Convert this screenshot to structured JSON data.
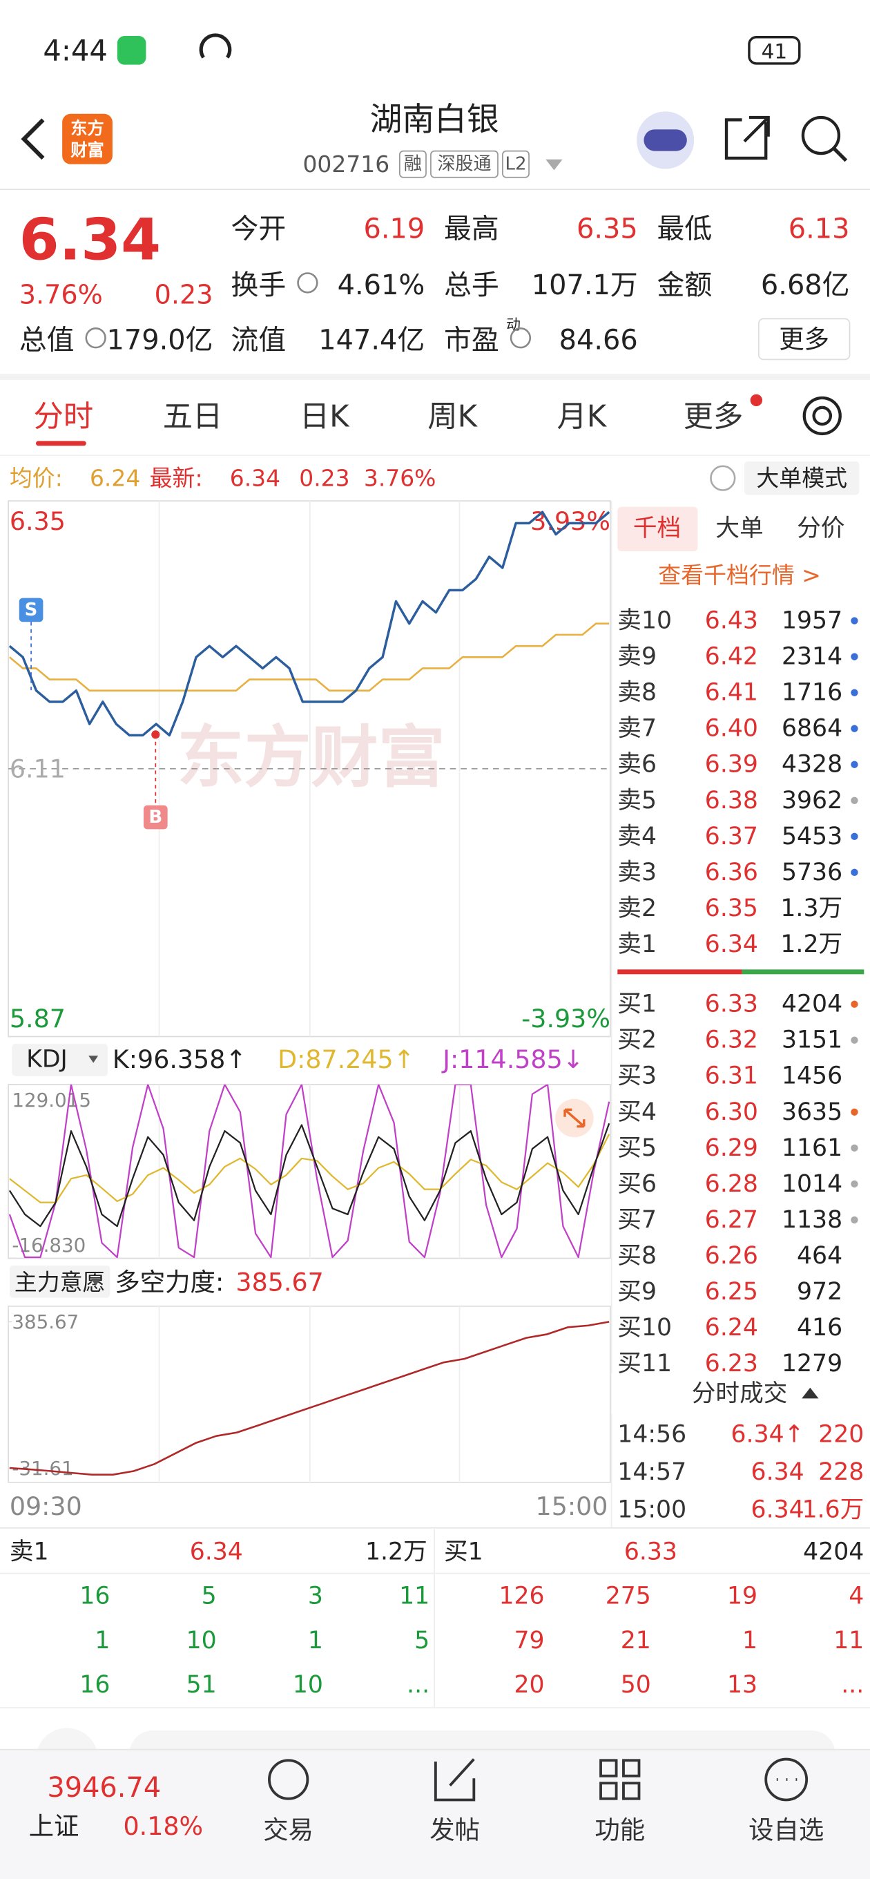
{
  "status": {
    "time": "4:44",
    "battery": "41"
  },
  "header": {
    "logo": [
      "东方",
      "财富"
    ],
    "title": "湖南白银",
    "code": "002716",
    "tags": [
      "融",
      "深股通",
      "L2"
    ]
  },
  "quote": {
    "price": "6.34",
    "pct": "3.76%",
    "change": "0.23",
    "more": "更多",
    "fields": [
      {
        "label": "今开",
        "value": "6.19"
      },
      {
        "label": "最高",
        "value": "6.35"
      },
      {
        "label": "最低",
        "value": "6.13"
      },
      {
        "label": "换手",
        "value": "4.61%"
      },
      {
        "label": "总手",
        "value": "107.1万"
      },
      {
        "label": "金额",
        "value": "6.68亿"
      },
      {
        "label": "总值",
        "value": "179.0亿"
      },
      {
        "label": "流值",
        "value": "147.4亿"
      },
      {
        "label": "市盈",
        "sup": "动",
        "value": "84.66"
      }
    ]
  },
  "tabs": [
    "分时",
    "五日",
    "日K",
    "周K",
    "月K",
    "更多"
  ],
  "info_bar": {
    "avg_label": "均价:",
    "avg": "6.24",
    "latest_label": "最新:",
    "latest": "6.34",
    "change": "0.23",
    "pct": "3.76%",
    "mode": "大单模式"
  },
  "order_book": {
    "tabs": [
      "千档",
      "大单",
      "分价"
    ],
    "link": "查看千档行情 >",
    "asks": [
      {
        "label": "卖10",
        "price": "6.43",
        "volume": "1957",
        "dot": "#3a6fd8"
      },
      {
        "label": "卖9",
        "price": "6.42",
        "volume": "2314",
        "dot": "#3a6fd8"
      },
      {
        "label": "卖8",
        "price": "6.41",
        "volume": "1716",
        "dot": "#3a6fd8"
      },
      {
        "label": "卖7",
        "price": "6.40",
        "volume": "6864",
        "dot": "#3a6fd8"
      },
      {
        "label": "卖6",
        "price": "6.39",
        "volume": "4328",
        "dot": "#3a6fd8"
      },
      {
        "label": "卖5",
        "price": "6.38",
        "volume": "3962",
        "dot": "#aaaaaa"
      },
      {
        "label": "卖4",
        "price": "6.37",
        "volume": "5453",
        "dot": "#3a6fd8"
      },
      {
        "label": "卖3",
        "price": "6.36",
        "volume": "5736",
        "dot": "#3a6fd8"
      },
      {
        "label": "卖2",
        "price": "6.35",
        "volume": "1.3万"
      },
      {
        "label": "卖1",
        "price": "6.34",
        "volume": "1.2万"
      }
    ],
    "bids": [
      {
        "label": "买1",
        "price": "6.33",
        "volume": "4204",
        "dot": "#e8662a"
      },
      {
        "label": "买2",
        "price": "6.32",
        "volume": "3151",
        "dot": "#aaaaaa"
      },
      {
        "label": "买3",
        "price": "6.31",
        "volume": "1456"
      },
      {
        "label": "买4",
        "price": "6.30",
        "volume": "3635",
        "dot": "#e8662a"
      },
      {
        "label": "买5",
        "price": "6.29",
        "volume": "1161",
        "dot": "#aaaaaa"
      },
      {
        "label": "买6",
        "price": "6.28",
        "volume": "1014",
        "dot": "#aaaaaa"
      },
      {
        "label": "买7",
        "price": "6.27",
        "volume": "1138",
        "dot": "#aaaaaa"
      },
      {
        "label": "买8",
        "price": "6.26",
        "volume": "464"
      },
      {
        "label": "买9",
        "price": "6.25",
        "volume": "972"
      },
      {
        "label": "买10",
        "price": "6.24",
        "volume": "416"
      },
      {
        "label": "买11",
        "price": "6.23",
        "volume": "1279"
      }
    ]
  },
  "trades": {
    "title": "分时成交",
    "rows": [
      [
        "14:56",
        "6.34↑",
        "220"
      ],
      [
        "14:57",
        "6.34",
        "228"
      ],
      [
        "15:00",
        "6.34",
        "1.6万"
      ]
    ]
  },
  "chart_data": [
    {
      "type": "line",
      "watermark": "东方财富",
      "markers": [
        "S",
        "B"
      ],
      "x_labels": [
        "09:30",
        "15:00"
      ],
      "ylim": [
        5.87,
        6.35
      ],
      "yticks": [
        5.87,
        6.11,
        6.35
      ],
      "y2lim": [
        -3.93,
        3.93
      ],
      "y2ticks": [
        {
          "value": -3.93,
          "label": "-3.93%"
        },
        {
          "value": 3.93,
          "label": "3.93%"
        }
      ],
      "series": [
        {
          "color": "#2c5e9e",
          "values": [
            6.22,
            6.21,
            6.18,
            6.17,
            6.17,
            6.18,
            6.15,
            6.17,
            6.15,
            6.14,
            6.14,
            6.15,
            6.14,
            6.17,
            6.21,
            6.22,
            6.21,
            6.22,
            6.21,
            6.2,
            6.21,
            6.2,
            6.17,
            6.17,
            6.17,
            6.17,
            6.18,
            6.2,
            6.21,
            6.26,
            6.24,
            6.26,
            6.25,
            6.27,
            6.27,
            6.28,
            6.3,
            6.29,
            6.33,
            6.33,
            6.34,
            6.32,
            6.33,
            6.33,
            6.33,
            6.34
          ]
        },
        {
          "color": "#e8b040",
          "values": [
            6.21,
            6.2,
            6.2,
            6.19,
            6.19,
            6.19,
            6.18,
            6.18,
            6.18,
            6.18,
            6.18,
            6.18,
            6.18,
            6.18,
            6.18,
            6.18,
            6.18,
            6.18,
            6.19,
            6.19,
            6.19,
            6.19,
            6.19,
            6.19,
            6.18,
            6.18,
            6.18,
            6.18,
            6.19,
            6.19,
            6.19,
            6.2,
            6.2,
            6.2,
            6.21,
            6.21,
            6.21,
            6.21,
            6.22,
            6.22,
            6.22,
            6.23,
            6.23,
            6.23,
            6.24,
            6.24
          ]
        }
      ]
    },
    {
      "type": "line",
      "indicator": "KDJ",
      "legend": [
        "K:96.358↑",
        "D:87.245↑",
        "J:114.585↓"
      ],
      "ylim": [
        -16.83,
        129.015
      ],
      "yticks": [
        {
          "value": -16.83,
          "label": "-16.830"
        },
        129.015
      ],
      "series": [
        {
          "color": "#222222",
          "values": [
            40,
            20,
            10,
            30,
            90,
            60,
            20,
            10,
            50,
            85,
            70,
            30,
            15,
            60,
            90,
            80,
            40,
            20,
            70,
            95,
            60,
            25,
            20,
            55,
            85,
            75,
            35,
            15,
            40,
            80,
            90,
            50,
            20,
            30,
            75,
            85,
            40,
            20,
            60,
            96.358
          ]
        },
        {
          "color": "#e0b830",
          "values": [
            50,
            40,
            30,
            30,
            50,
            53,
            42,
            31,
            37,
            53,
            59,
            49,
            38,
            45,
            60,
            67,
            58,
            45,
            53,
            67,
            65,
            52,
            41,
            46,
            59,
            64,
            54,
            41,
            41,
            54,
            66,
            61,
            47,
            41,
            52,
            63,
            55,
            43,
            62,
            87.245
          ]
        },
        {
          "color": "#c040c8",
          "values": [
            20,
            -16,
            -16,
            30,
            129,
            74,
            -4,
            -16,
            76,
            129,
            92,
            -8,
            -16,
            90,
            129,
            106,
            4,
            -16,
            104,
            129,
            50,
            -16,
            -2,
            73,
            129,
            97,
            -3,
            -16,
            38,
            129,
            129,
            28,
            -16,
            8,
            121,
            129,
            10,
            -16,
            56,
            114.585
          ]
        }
      ]
    },
    {
      "type": "line",
      "indicator": "主力意愿",
      "legend_label": "多空力度:",
      "legend_value": "385.67",
      "ylim": [
        -72,
        430
      ],
      "yticks": [
        {
          "value": -31.61,
          "label": "-31.61"
        },
        385.67
      ],
      "series": [
        {
          "color": "#b02828",
          "values": [
            -31,
            -35,
            -40,
            -45,
            -50,
            -50,
            -40,
            -20,
            10,
            40,
            60,
            70,
            90,
            110,
            130,
            150,
            170,
            190,
            210,
            230,
            250,
            270,
            280,
            300,
            320,
            340,
            350,
            370,
            375,
            385.67
          ]
        }
      ]
    }
  ],
  "depth": {
    "left": {
      "header": [
        "卖1",
        "6.34",
        "1.2万"
      ],
      "rows": [
        [
          "16",
          "5",
          "3",
          "11"
        ],
        [
          "1",
          "10",
          "1",
          "5"
        ],
        [
          "16",
          "51",
          "10",
          "..."
        ]
      ]
    },
    "right": {
      "header": [
        "买1",
        "6.33",
        "4204"
      ],
      "rows": [
        [
          "126",
          "275",
          "19",
          "4"
        ],
        [
          "79",
          "21",
          "1",
          "11"
        ],
        [
          "20",
          "50",
          "13",
          "..."
        ]
      ]
    }
  },
  "nav": {
    "index_value": "3946.74",
    "index_name": "上证",
    "index_pct": "0.18%",
    "items": [
      "交易",
      "发帖",
      "功能",
      "设自选"
    ]
  }
}
